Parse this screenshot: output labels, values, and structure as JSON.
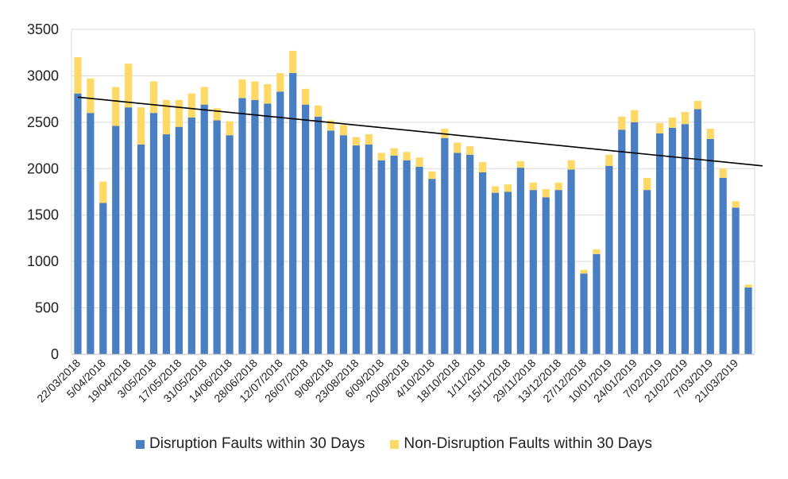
{
  "chart_data": {
    "type": "bar",
    "stacked": true,
    "title": "",
    "xlabel": "",
    "ylabel": "",
    "ylim": [
      0,
      3500
    ],
    "yticks": [
      0,
      500,
      1000,
      1500,
      2000,
      2500,
      3000,
      3500
    ],
    "grid": true,
    "legend": "bottom",
    "x_tick_labels": [
      "22/03/2018",
      "5/04/2018",
      "19/04/2018",
      "3/05/2018",
      "17/05/2018",
      "31/05/2018",
      "14/06/2018",
      "28/06/2018",
      "12/07/2018",
      "26/07/2018",
      "9/08/2018",
      "23/08/2018",
      "6/09/2018",
      "20/09/2018",
      "4/10/2018",
      "18/10/2018",
      "1/11/2018",
      "15/11/2018",
      "29/11/2018",
      "13/12/2018",
      "27/12/2018",
      "10/01/2019",
      "24/01/2019",
      "7/02/2019",
      "21/02/2019",
      "7/03/2019",
      "21/03/2019"
    ],
    "series": [
      {
        "name": "Disruption Faults within 30 Days",
        "color": "#4a7ec2",
        "values": [
          2810,
          2600,
          1630,
          2460,
          2660,
          2260,
          2600,
          2370,
          2450,
          2550,
          2690,
          2520,
          2360,
          2760,
          2740,
          2700,
          2830,
          3030,
          2690,
          2560,
          2410,
          2360,
          2250,
          2260,
          2090,
          2140,
          2090,
          2020,
          1890,
          2330,
          2170,
          2150,
          1960,
          1740,
          1750,
          2010,
          1770,
          1690,
          1770,
          1990,
          870,
          1080,
          2030,
          2420,
          2500,
          1770,
          2380,
          2440,
          2480,
          2640,
          2320,
          1900,
          1580,
          720
        ]
      },
      {
        "name": "Non-Disruption Faults within 30 Days",
        "color": "#ffd966",
        "values": [
          390,
          370,
          230,
          420,
          470,
          400,
          340,
          370,
          290,
          260,
          190,
          130,
          150,
          200,
          200,
          210,
          200,
          240,
          170,
          120,
          110,
          110,
          90,
          110,
          80,
          80,
          90,
          100,
          80,
          100,
          110,
          90,
          110,
          70,
          80,
          70,
          80,
          90,
          80,
          100,
          40,
          50,
          120,
          140,
          130,
          130,
          110,
          110,
          130,
          90,
          110,
          100,
          70,
          30
        ]
      }
    ],
    "trendline": {
      "start": 2770,
      "end": 2030,
      "color": "#000000"
    }
  },
  "legend": {
    "items": [
      {
        "label": "Disruption Faults within 30 Days",
        "color": "#4a7ec2"
      },
      {
        "label": "Non-Disruption Faults within 30 Days",
        "color": "#ffd966"
      }
    ]
  }
}
